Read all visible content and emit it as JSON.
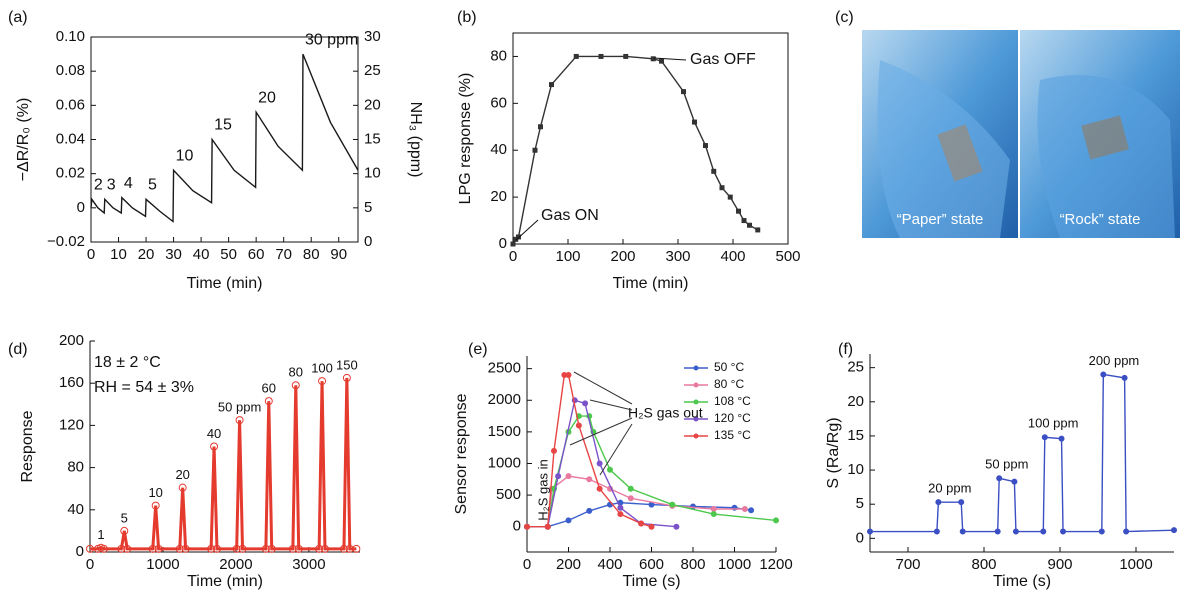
{
  "chart_data": [
    {
      "type": "line",
      "label": "(a)",
      "x_label": "Time (min)",
      "y_label": "−ΔR/R₀ (%)",
      "y2_label": "NH₃ (ppm)",
      "color": "#1a1a1a",
      "marker": "none",
      "frame": true,
      "x": [
        0,
        0.3,
        2.5,
        4.8,
        5.0,
        8,
        11.0,
        11.2,
        15,
        19.8,
        20.0,
        25,
        29.8,
        30.0,
        37,
        43.8,
        44.0,
        52,
        59.8,
        60.0,
        68,
        76.8,
        77.0,
        87,
        97
      ],
      "values": [
        0,
        0.005,
        0.0,
        -0.003,
        0.005,
        0.0,
        -0.003,
        0.006,
        0.0,
        -0.005,
        0.005,
        -0.002,
        -0.008,
        0.022,
        0.01,
        0.003,
        0.04,
        0.022,
        0.012,
        0.056,
        0.036,
        0.022,
        0.09,
        0.05,
        0.022
      ],
      "xlim": [
        0,
        97
      ],
      "xticks": [
        0,
        10,
        20,
        30,
        40,
        50,
        60,
        70,
        80,
        90
      ],
      "ylim": [
        -0.02,
        0.1
      ],
      "yticks": [
        {
          "value": -0.02,
          "label": "−0.02"
        },
        0,
        0.02,
        0.04,
        0.06,
        0.08,
        {
          "value": 0.1,
          "label": "0.10"
        }
      ],
      "y2lim": [
        0,
        30
      ],
      "y2ticks": [
        0,
        5,
        10,
        15,
        20,
        25,
        30
      ],
      "annotations": [
        "2",
        "3",
        "4",
        "5",
        "10",
        "15",
        "20",
        "30 ppm"
      ]
    },
    {
      "type": "line",
      "label": "(b)",
      "x_label": "Time (min)",
      "y_label": "LPG response (%)",
      "color": "#333333",
      "marker": "square",
      "frame": true,
      "x": [
        0,
        5,
        10,
        40,
        50,
        70,
        115,
        160,
        205,
        255,
        270,
        310,
        330,
        350,
        365,
        380,
        395,
        410,
        420,
        430,
        445
      ],
      "values": [
        0,
        2,
        3,
        40,
        50,
        68,
        80,
        80,
        80,
        79,
        78,
        65,
        52,
        42,
        31,
        24,
        20,
        14,
        10,
        8,
        6
      ],
      "xlim": [
        0,
        500
      ],
      "xticks": [
        0,
        100,
        200,
        300,
        400,
        500
      ],
      "ylim": [
        0,
        90
      ],
      "yticks": [
        0,
        20,
        40,
        60,
        80
      ],
      "annotations": [
        "Gas ON",
        "Gas OFF"
      ]
    },
    {
      "type": "line",
      "label": "(d)",
      "x_label": "Time (min)",
      "y_label": "Response",
      "color": "#e53a2e",
      "marker": "circle",
      "frame": false,
      "x": [
        0,
        110,
        150,
        190,
        430,
        470,
        510,
        860,
        900,
        940,
        1230,
        1270,
        1310,
        1660,
        1700,
        1740,
        2010,
        2050,
        2090,
        2410,
        2450,
        2490,
        2780,
        2820,
        2860,
        3140,
        3180,
        3220,
        3480,
        3520,
        3560,
        3650
      ],
      "values": [
        3,
        3,
        4,
        3,
        3,
        20,
        3,
        3,
        44,
        3,
        3,
        61,
        3,
        3,
        100,
        3,
        3,
        125,
        3,
        3,
        143,
        3,
        3,
        158,
        3,
        3,
        162,
        3,
        3,
        165,
        3,
        3
      ],
      "xlim": [
        0,
        3700
      ],
      "xticks": [
        0,
        1000,
        2000,
        3000
      ],
      "ylim": [
        0,
        200
      ],
      "yticks": [
        0,
        40,
        80,
        120,
        160,
        200
      ],
      "annotations": [
        "1",
        "5",
        "10",
        "20",
        "40",
        "50 ppm",
        "60",
        "80",
        "100",
        "150"
      ],
      "notes": [
        "18 ± 2 °C",
        "RH = 54 ± 3%"
      ]
    },
    {
      "type": "line",
      "label": "(e)",
      "x_label": "Time (s)",
      "y_label": "Sensor response",
      "marker": "circle",
      "frame": false,
      "xlim": [
        0,
        1200
      ],
      "xticks": [
        0,
        200,
        400,
        600,
        800,
        1000,
        1200
      ],
      "ylim": [
        -400,
        2700
      ],
      "yticks": [
        0,
        500,
        1000,
        1500,
        2000,
        2500
      ],
      "series": [
        {
          "name": "50 °C",
          "color": "#3a5fcd",
          "x": [
            0,
            100,
            200,
            300,
            400,
            450,
            600,
            800,
            1000,
            1080
          ],
          "values": [
            0,
            0,
            100,
            250,
            350,
            380,
            350,
            320,
            300,
            260
          ]
        },
        {
          "name": "80 °C",
          "color": "#e8799f",
          "x": [
            0,
            100,
            120,
            200,
            300,
            400,
            500,
            700,
            900,
            1050
          ],
          "values": [
            0,
            0,
            600,
            800,
            750,
            600,
            450,
            330,
            280,
            280
          ]
        },
        {
          "name": "108 °C",
          "color": "#4cc94c",
          "x": [
            0,
            100,
            130,
            200,
            250,
            300,
            320,
            400,
            500,
            700,
            900,
            1200
          ],
          "values": [
            0,
            0,
            600,
            1500,
            1750,
            1750,
            1500,
            900,
            600,
            350,
            200,
            100
          ]
        },
        {
          "name": "120 °C",
          "color": "#7b52c9",
          "x": [
            0,
            100,
            150,
            230,
            280,
            350,
            450,
            550,
            720
          ],
          "values": [
            0,
            0,
            800,
            2000,
            1950,
            1000,
            300,
            50,
            0
          ]
        },
        {
          "name": "135 °C",
          "color": "#e84545",
          "x": [
            0,
            100,
            130,
            180,
            200,
            250,
            350,
            450,
            550,
            600
          ],
          "values": [
            0,
            0,
            1200,
            2400,
            2400,
            1600,
            600,
            200,
            50,
            0
          ]
        }
      ],
      "annotations": [
        "H₂S gas in",
        "H₂S gas out"
      ]
    },
    {
      "type": "line",
      "label": "(f)",
      "x_label": "Time (s)",
      "y_label": "S (Ra/Rg)",
      "color": "#3b4fc4",
      "marker": "circle",
      "frame": false,
      "x": [
        650,
        738,
        740,
        770,
        772,
        818,
        820,
        840,
        842,
        878,
        880,
        902,
        904,
        955,
        957,
        985,
        987,
        1050
      ],
      "values": [
        1,
        1,
        5.3,
        5.3,
        1,
        1,
        8.8,
        8.3,
        1,
        1,
        14.8,
        14.6,
        1,
        1,
        24,
        23.5,
        1,
        1.2
      ],
      "xlim": [
        650,
        1050
      ],
      "xticks": [
        700,
        800,
        900,
        1000
      ],
      "ylim": [
        -2,
        27
      ],
      "yticks": [
        0,
        5,
        10,
        15,
        20,
        25
      ],
      "annotations": [
        "20 ppm",
        "50 ppm",
        "100 ppm",
        "200 ppm"
      ]
    }
  ],
  "photo": {
    "label": "(c)",
    "captions": [
      "“Paper” state",
      "“Rock” state"
    ]
  }
}
